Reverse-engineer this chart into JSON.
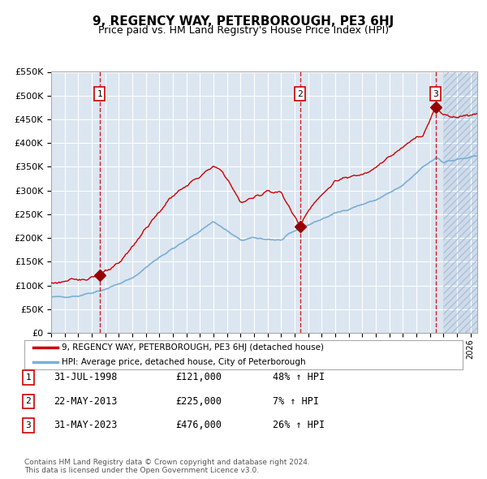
{
  "title": "9, REGENCY WAY, PETERBOROUGH, PE3 6HJ",
  "subtitle": "Price paid vs. HM Land Registry's House Price Index (HPI)",
  "plot_bg_color": "#dce6f1",
  "red_line_color": "#cc0000",
  "blue_line_color": "#7aafd4",
  "ylim": [
    0,
    550000
  ],
  "yticks": [
    0,
    50000,
    100000,
    150000,
    200000,
    250000,
    300000,
    350000,
    400000,
    450000,
    500000,
    550000
  ],
  "xlim_start": 1995.0,
  "xlim_end": 2026.5,
  "hatch_start": 2024.0,
  "sale_dates": [
    1998.58,
    2013.39,
    2023.42
  ],
  "sale_prices": [
    121000,
    225000,
    476000
  ],
  "sale_labels": [
    "1",
    "2",
    "3"
  ],
  "vline_color": "#cc0000",
  "marker_color": "#990000",
  "blue_keypoints_t": [
    1995,
    1997,
    1999,
    2001,
    2003,
    2005,
    2007,
    2009,
    2010,
    2012,
    2013,
    2016,
    2019,
    2021,
    2022.5,
    2023.5,
    2024,
    2025,
    2026.5
  ],
  "blue_keypoints_v": [
    75000,
    78000,
    92000,
    115000,
    160000,
    195000,
    235000,
    195000,
    200000,
    195000,
    215000,
    252000,
    280000,
    310000,
    350000,
    370000,
    360000,
    365000,
    372000
  ],
  "red_keypoints_t": [
    1995,
    1997,
    1998.58,
    2000,
    2002,
    2004,
    2007,
    2007.7,
    2009,
    2010,
    2011,
    2012,
    2013.39,
    2014,
    2016,
    2018,
    2019,
    2021,
    2022,
    2022.5,
    2023.42,
    2024,
    2025,
    2026.5
  ],
  "red_keypoints_v": [
    105000,
    112000,
    121000,
    145000,
    220000,
    290000,
    350000,
    340000,
    275000,
    285000,
    300000,
    295000,
    225000,
    260000,
    320000,
    335000,
    350000,
    390000,
    415000,
    415000,
    476000,
    460000,
    455000,
    462000
  ],
  "legend_entries": [
    "9, REGENCY WAY, PETERBOROUGH, PE3 6HJ (detached house)",
    "HPI: Average price, detached house, City of Peterborough"
  ],
  "table_rows": [
    {
      "num": "1",
      "date": "31-JUL-1998",
      "price": "£121,000",
      "hpi": "48% ↑ HPI"
    },
    {
      "num": "2",
      "date": "22-MAY-2013",
      "price": "£225,000",
      "hpi": "7% ↑ HPI"
    },
    {
      "num": "3",
      "date": "31-MAY-2023",
      "price": "£476,000",
      "hpi": "26% ↑ HPI"
    }
  ],
  "footer": "Contains HM Land Registry data © Crown copyright and database right 2024.\nThis data is licensed under the Open Government Licence v3.0."
}
